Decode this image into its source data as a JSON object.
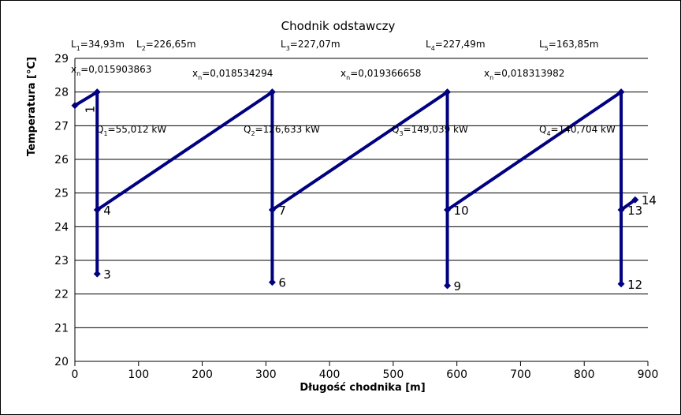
{
  "chart_data": {
    "type": "line",
    "title": "Chodnik odstawczy",
    "xlabel": "Długość chodnika [m]",
    "ylabel": "Temperatura [°C]",
    "xlim": [
      0,
      900
    ],
    "ylim": [
      20,
      29
    ],
    "xticks": [
      "0",
      "100",
      "200",
      "300",
      "400",
      "500",
      "600",
      "700",
      "800",
      "900"
    ],
    "yticks": [
      "20",
      "21",
      "22",
      "23",
      "24",
      "25",
      "26",
      "27",
      "28",
      "29"
    ],
    "grid": "horizontal",
    "colors": {
      "line": "#000080",
      "grid": "#000000"
    },
    "series": [
      {
        "points": [
          {
            "x": 0,
            "y": 27.6
          },
          {
            "x": 35,
            "y": 28.0
          },
          {
            "x": 35,
            "y": 22.6
          },
          {
            "x": 35,
            "y": 24.5
          },
          {
            "x": 310,
            "y": 28.0
          },
          {
            "x": 310,
            "y": 22.35
          },
          {
            "x": 310,
            "y": 24.5
          },
          {
            "x": 585,
            "y": 28.0
          },
          {
            "x": 585,
            "y": 22.25
          },
          {
            "x": 585,
            "y": 24.5
          },
          {
            "x": 858,
            "y": 28.0
          },
          {
            "x": 858,
            "y": 22.3
          },
          {
            "x": 858,
            "y": 24.5
          },
          {
            "x": 880,
            "y": 24.8
          }
        ]
      }
    ],
    "point_labels": [
      {
        "text": "1",
        "x": 35,
        "y": 28.0,
        "rotated": true
      },
      {
        "text": "3",
        "x": 35,
        "y": 22.6
      },
      {
        "text": "4",
        "x": 35,
        "y": 24.5
      },
      {
        "text": "6",
        "x": 310,
        "y": 22.35
      },
      {
        "text": "7",
        "x": 310,
        "y": 24.5
      },
      {
        "text": "9",
        "x": 585,
        "y": 22.25
      },
      {
        "text": "10",
        "x": 585,
        "y": 24.5
      },
      {
        "text": "12",
        "x": 858,
        "y": 22.3
      },
      {
        "text": "13",
        "x": 858,
        "y": 24.5
      },
      {
        "text": "14",
        "x": 880,
        "y": 24.8
      }
    ],
    "annotations": {
      "lengths": [
        {
          "prefix": "L",
          "sub": "1",
          "value": "=34,93m"
        },
        {
          "prefix": "L",
          "sub": "2",
          "value": "=226,65m"
        },
        {
          "prefix": "L",
          "sub": "3",
          "value": "=227,07m"
        },
        {
          "prefix": "L",
          "sub": "4",
          "value": "=227,49m"
        },
        {
          "prefix": "L",
          "sub": "5",
          "value": "=163,85m"
        }
      ],
      "moisture": [
        {
          "prefix": "x",
          "sub": "n",
          "value": "=0,015903863"
        },
        {
          "prefix": "x",
          "sub": "n",
          "value": "=0,018534294"
        },
        {
          "prefix": "x",
          "sub": "n",
          "value": "=0,019366658"
        },
        {
          "prefix": "x",
          "sub": "n",
          "value": "=0,018313982"
        }
      ],
      "heat": [
        {
          "prefix": "Q",
          "sub": "1",
          "value": "=55,012 kW"
        },
        {
          "prefix": "Q",
          "sub": "2",
          "value": "=126,633 kW"
        },
        {
          "prefix": "Q",
          "sub": "3",
          "value": "=149,039 kW"
        },
        {
          "prefix": "Q",
          "sub": "4",
          "value": "=140,704 kW"
        }
      ]
    }
  }
}
